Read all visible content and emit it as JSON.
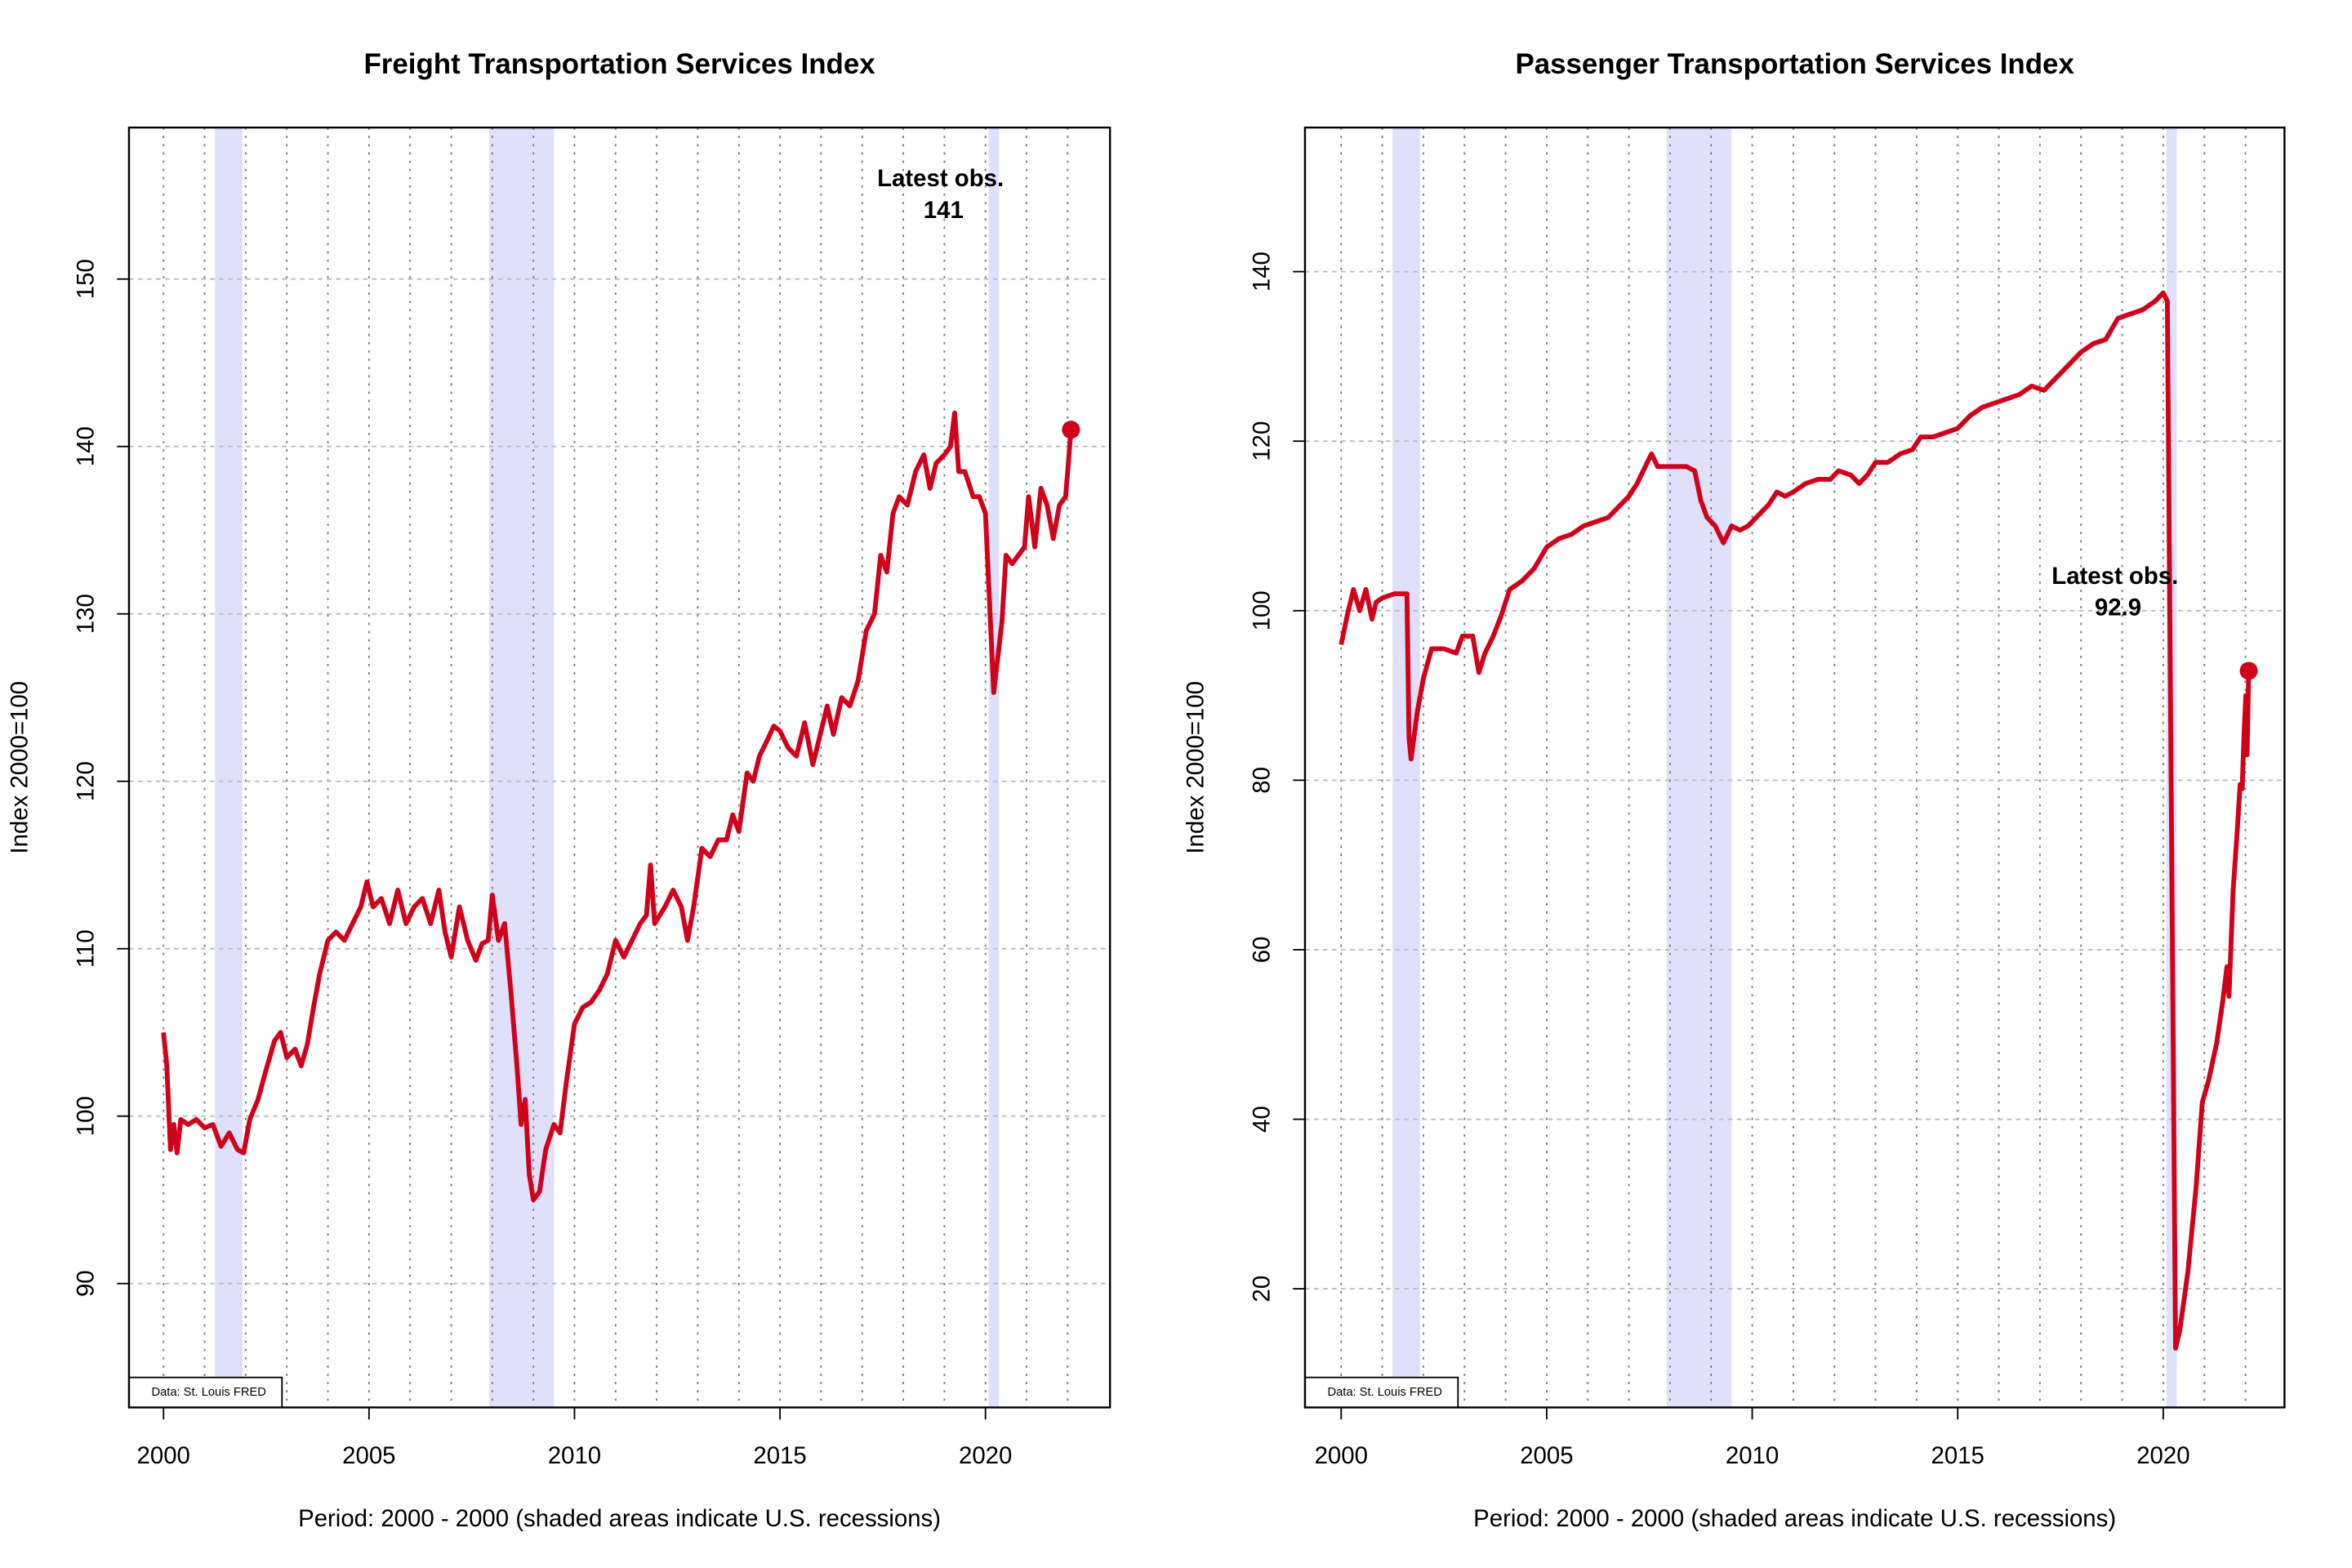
{
  "chart_data": [
    {
      "type": "line",
      "title": "Freight Transportation Services Index",
      "xlabel": "Period: 2000 - 2000 (shaded areas indicate U.S. recessions)",
      "ylabel": "Index 2000=100",
      "source": "Data: St. Louis FRED",
      "color": "#d0021b",
      "annotation": {
        "label": "Latest obs.",
        "value": 141
      },
      "recessions": [
        [
          2001.25,
          2001.92
        ],
        [
          2007.92,
          2009.5
        ],
        [
          2020.08,
          2020.33
        ]
      ],
      "recession_color": "#e0e0fb",
      "xlim": [
        1999.16,
        2023.03
      ],
      "ylim": [
        82.6,
        159.05
      ],
      "xticks": [
        2000,
        2005,
        2010,
        2015,
        2020
      ],
      "yticks": [
        90,
        100,
        110,
        120,
        130,
        140,
        150
      ],
      "xgrid": [
        2000,
        2001,
        2002,
        2003,
        2004,
        2005,
        2006,
        2007,
        2008,
        2009,
        2010,
        2011,
        2012,
        2013,
        2014,
        2015,
        2016,
        2017,
        2018,
        2019,
        2020,
        2021,
        2022
      ],
      "grid": true,
      "x": [
        2000,
        2000.08,
        2000.17,
        2000.25,
        2000.33,
        2000.42,
        2000.6,
        2000.8,
        2001,
        2001.2,
        2001.4,
        2001.6,
        2001.8,
        2001.95,
        2002.1,
        2002.3,
        2002.5,
        2002.7,
        2002.85,
        2003,
        2003.2,
        2003.35,
        2003.5,
        2003.65,
        2003.8,
        2004,
        2004.2,
        2004.4,
        2004.6,
        2004.8,
        2004.95,
        2005.1,
        2005.3,
        2005.5,
        2005.7,
        2005.9,
        2006.1,
        2006.3,
        2006.5,
        2006.7,
        2006.85,
        2007,
        2007.2,
        2007.4,
        2007.6,
        2007.75,
        2007.9,
        2008,
        2008.15,
        2008.3,
        2008.45,
        2008.6,
        2008.7,
        2008.8,
        2008.9,
        2009,
        2009.15,
        2009.3,
        2009.5,
        2009.65,
        2009.8,
        2010,
        2010.2,
        2010.4,
        2010.6,
        2010.8,
        2011,
        2011.2,
        2011.4,
        2011.6,
        2011.75,
        2011.85,
        2011.95,
        2012.2,
        2012.4,
        2012.6,
        2012.75,
        2012.9,
        2013.1,
        2013.3,
        2013.5,
        2013.7,
        2013.85,
        2014,
        2014.2,
        2014.35,
        2014.5,
        2014.7,
        2014.85,
        2015,
        2015.2,
        2015.4,
        2015.6,
        2015.8,
        2015.95,
        2016.15,
        2016.3,
        2016.5,
        2016.7,
        2016.9,
        2017.1,
        2017.3,
        2017.45,
        2017.6,
        2017.75,
        2017.9,
        2018.1,
        2018.3,
        2018.5,
        2018.65,
        2018.8,
        2019,
        2019.15,
        2019.25,
        2019.35,
        2019.5,
        2019.7,
        2019.85,
        2020,
        2020.2,
        2020.4,
        2020.5,
        2020.65,
        2020.8,
        2020.95,
        2021.05,
        2021.2,
        2021.35,
        2021.5,
        2021.65,
        2021.8,
        2021.95,
        2022,
        2022.08
      ],
      "values": [
        105,
        103,
        98,
        99.5,
        97.8,
        99.8,
        99.5,
        99.8,
        99.3,
        99.5,
        98.2,
        99,
        98,
        97.8,
        99.8,
        101,
        102.8,
        104.5,
        105,
        103.5,
        104,
        103,
        104.3,
        106.5,
        108.5,
        110.5,
        111,
        110.5,
        111.5,
        112.5,
        114,
        112.5,
        113,
        111.5,
        113.5,
        111.5,
        112.5,
        113,
        111.5,
        113.5,
        111,
        109.5,
        112.5,
        110.5,
        109.3,
        110.3,
        110.5,
        113.2,
        110.5,
        111.5,
        107.5,
        103,
        99.5,
        101,
        96.5,
        95,
        95.5,
        98,
        99.5,
        99,
        102,
        105.5,
        106.5,
        106.8,
        107.5,
        108.5,
        110.5,
        109.5,
        110.5,
        111.5,
        112,
        115,
        111.5,
        112.5,
        113.5,
        112.5,
        110.5,
        112.5,
        116,
        115.5,
        116.5,
        116.5,
        118,
        117,
        120.5,
        120,
        121.5,
        122.5,
        123.3,
        123,
        122,
        121.5,
        123.5,
        121,
        122.5,
        124.5,
        122.8,
        125,
        124.5,
        126,
        129,
        130,
        133.5,
        132.5,
        136,
        137,
        136.5,
        138.5,
        139.5,
        137.5,
        139,
        139.5,
        140,
        142,
        138.5,
        138.5,
        137,
        137,
        136,
        125.3,
        129.5,
        133.5,
        133,
        133.5,
        134,
        137,
        134,
        137.5,
        136.5,
        134.5,
        136.5,
        137,
        138.5,
        141
      ]
    },
    {
      "type": "line",
      "title": "Passenger Transportation Services Index",
      "xlabel": "Period: 2000 - 2000 (shaded areas indicate U.S. recessions)",
      "ylabel": "Index 2000=100",
      "source": "Data: St. Louis FRED",
      "color": "#d0021b",
      "annotation": {
        "label": "Latest obs.",
        "value": 92.9
      },
      "recessions": [
        [
          2001.25,
          2001.92
        ],
        [
          2007.92,
          2009.5
        ],
        [
          2020.08,
          2020.33
        ]
      ],
      "recession_color": "#e0e0fb",
      "xlim": [
        1999.12,
        2022.95
      ],
      "ylim": [
        6.0,
        157.0
      ],
      "xticks": [
        2000,
        2005,
        2010,
        2015,
        2020
      ],
      "yticks": [
        20,
        40,
        60,
        80,
        100,
        120,
        140
      ],
      "xgrid": [
        2000,
        2001,
        2002,
        2003,
        2004,
        2005,
        2006,
        2007,
        2008,
        2009,
        2010,
        2011,
        2012,
        2013,
        2014,
        2015,
        2016,
        2017,
        2018,
        2019,
        2020,
        2021,
        2022
      ],
      "grid": true,
      "x": [
        2000,
        2000.15,
        2000.3,
        2000.45,
        2000.6,
        2000.75,
        2000.85,
        2001,
        2001.3,
        2001.6,
        2001.65,
        2001.7,
        2001.85,
        2002,
        2002.2,
        2002.5,
        2002.8,
        2002.95,
        2003.2,
        2003.35,
        2003.5,
        2003.7,
        2003.9,
        2004.1,
        2004.4,
        2004.7,
        2005,
        2005.3,
        2005.6,
        2005.9,
        2006.2,
        2006.5,
        2006.8,
        2007,
        2007.2,
        2007.4,
        2007.55,
        2007.7,
        2007.9,
        2008.1,
        2008.4,
        2008.6,
        2008.75,
        2008.9,
        2009.1,
        2009.3,
        2009.5,
        2009.7,
        2009.9,
        2010.1,
        2010.4,
        2010.6,
        2010.8,
        2011,
        2011.3,
        2011.6,
        2011.9,
        2012.1,
        2012.4,
        2012.6,
        2012.8,
        2013,
        2013.3,
        2013.6,
        2013.9,
        2014.1,
        2014.4,
        2014.7,
        2015,
        2015.3,
        2015.6,
        2015.9,
        2016.2,
        2016.5,
        2016.8,
        2017.1,
        2017.4,
        2017.7,
        2018,
        2018.3,
        2018.6,
        2018.9,
        2019.2,
        2019.5,
        2019.8,
        2020,
        2020.1,
        2020.2,
        2020.3,
        2020.4,
        2020.6,
        2020.8,
        2020.95,
        2021.1,
        2021.3,
        2021.45,
        2021.55,
        2021.6,
        2021.7,
        2021.8,
        2021.87,
        2021.92,
        2021.97,
        2022.01,
        2022.04,
        2022.08
      ],
      "values": [
        96,
        99.5,
        102.5,
        100,
        102.5,
        99,
        101,
        101.5,
        102,
        102,
        85,
        82.5,
        88,
        92,
        95.5,
        95.5,
        95,
        97,
        97,
        92.7,
        95,
        97,
        99.5,
        102.5,
        103.5,
        105,
        107.5,
        108.5,
        109,
        110,
        110.5,
        111,
        112.5,
        113.5,
        115,
        117,
        118.5,
        117,
        117,
        117,
        117,
        116.5,
        113,
        111,
        110,
        108,
        110,
        109.5,
        110,
        111,
        112.5,
        114,
        113.5,
        114,
        115,
        115.5,
        115.5,
        116.5,
        116,
        115,
        116,
        117.5,
        117.5,
        118.5,
        119,
        120.5,
        120.5,
        121,
        121.5,
        123,
        124,
        124.5,
        125,
        125.5,
        126.5,
        126,
        127.5,
        129,
        130.5,
        131.5,
        132,
        134.5,
        135,
        135.5,
        136.5,
        137.5,
        136.5,
        75,
        13,
        15,
        22,
        32,
        42,
        44.5,
        49,
        54,
        58,
        54.5,
        67,
        74,
        79.5,
        79,
        86,
        90,
        83,
        92.9
      ]
    }
  ]
}
